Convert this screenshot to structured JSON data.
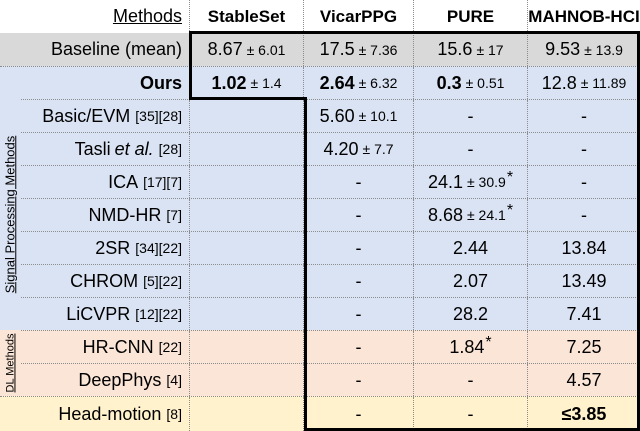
{
  "header": {
    "methods_label": "Methods",
    "datasets": [
      "StableSet",
      "VicarPPG",
      "PURE",
      "MAHNOB-HCI"
    ]
  },
  "group_labels": {
    "signal": "Signal Processing Methods",
    "dl": "DL Methods"
  },
  "colors": {
    "baseline_row": "#d9d9d9",
    "signal_rows": "#dae3f3",
    "dl_rows": "#fbe5d6",
    "headmotion_row": "#fff2cc",
    "highlight_border": "#000000"
  },
  "rows": [
    {
      "name": "Baseline (mean)",
      "cells": [
        {
          "main": "8.67",
          "pm": "± 6.01"
        },
        {
          "main": "17.5",
          "pm": "± 7.36"
        },
        {
          "main": "15.6",
          "pm": "± 17"
        },
        {
          "main": "9.53",
          "pm": "± 13.9"
        }
      ]
    },
    {
      "name": "Ours",
      "cells": [
        {
          "main": "1.02",
          "pm": "± 1.4"
        },
        {
          "main": "2.64",
          "pm": "± 6.32"
        },
        {
          "main": "0.3",
          "pm": "± 0.51"
        },
        {
          "main": "12.8",
          "pm": "± 11.89"
        }
      ]
    },
    {
      "name": "Basic/EVM",
      "ref": "[35][28]",
      "cells": [
        {
          "main": ""
        },
        {
          "main": "5.60",
          "pm": "± 10.1"
        },
        {
          "main": "-"
        },
        {
          "main": "-"
        }
      ]
    },
    {
      "name": "Tasli",
      "name_it": "et al.",
      "ref": "[28]",
      "cells": [
        {
          "main": ""
        },
        {
          "main": "4.20",
          "pm": "± 7.7"
        },
        {
          "main": "-"
        },
        {
          "main": "-"
        }
      ]
    },
    {
      "name": "ICA",
      "ref": "[17][7]",
      "cells": [
        {
          "main": ""
        },
        {
          "main": "-"
        },
        {
          "main": "24.1",
          "pm": "± 30.9",
          "star": "*"
        },
        {
          "main": "-"
        }
      ]
    },
    {
      "name": "NMD-HR",
      "ref": "[7]",
      "cells": [
        {
          "main": ""
        },
        {
          "main": "-"
        },
        {
          "main": "8.68",
          "pm": "± 24.1",
          "star": "*"
        },
        {
          "main": "-"
        }
      ]
    },
    {
      "name": "2SR",
      "ref": "[34][22]",
      "cells": [
        {
          "main": ""
        },
        {
          "main": "-"
        },
        {
          "main": "2.44"
        },
        {
          "main": "13.84"
        }
      ]
    },
    {
      "name": "CHROM",
      "ref": "[5][22]",
      "cells": [
        {
          "main": ""
        },
        {
          "main": "-"
        },
        {
          "main": "2.07"
        },
        {
          "main": "13.49"
        }
      ]
    },
    {
      "name": "LiCVPR",
      "ref": "[12][22]",
      "cells": [
        {
          "main": ""
        },
        {
          "main": "-"
        },
        {
          "main": "28.2"
        },
        {
          "main": "7.41"
        }
      ]
    },
    {
      "name": "HR-CNN",
      "ref": "[22]",
      "cells": [
        {
          "main": ""
        },
        {
          "main": "-"
        },
        {
          "main": "1.84",
          "star": "*"
        },
        {
          "main": "7.25"
        }
      ]
    },
    {
      "name": "DeepPhys",
      "ref": "[4]",
      "cells": [
        {
          "main": ""
        },
        {
          "main": "-"
        },
        {
          "main": "-"
        },
        {
          "main": "4.57"
        }
      ]
    },
    {
      "name": "Head-motion",
      "ref": "[8]",
      "cells": [
        {
          "main": ""
        },
        {
          "main": "-"
        },
        {
          "main": "-"
        },
        {
          "main": "≤3.85"
        }
      ]
    }
  ]
}
